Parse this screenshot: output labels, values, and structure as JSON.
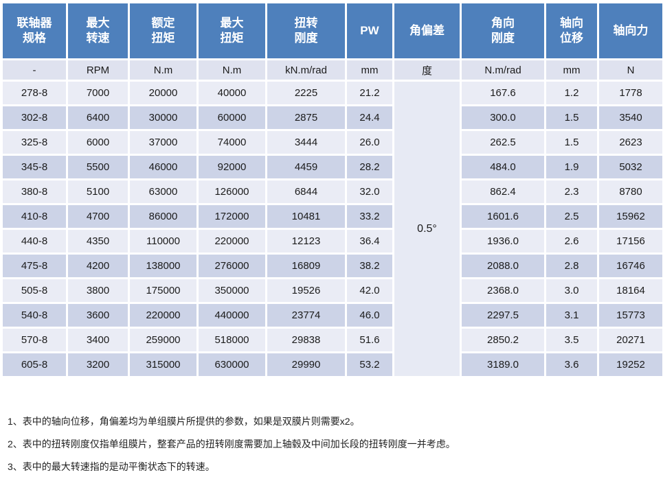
{
  "table": {
    "columns": [
      {
        "id": "spec",
        "header": "联轴器\n规格",
        "unit": "-"
      },
      {
        "id": "max-speed",
        "header": "最大\n转速",
        "unit": "RPM"
      },
      {
        "id": "rated-torque",
        "header": "额定\n扭矩",
        "unit": "N.m"
      },
      {
        "id": "max-torque",
        "header": "最大\n扭矩",
        "unit": "N.m"
      },
      {
        "id": "torsional-stiffness",
        "header": "扭转\n刚度",
        "unit": "kN.m/rad"
      },
      {
        "id": "pw",
        "header": "PW",
        "unit": "mm"
      },
      {
        "id": "angular-deviation",
        "header": "角偏差",
        "unit": "度"
      },
      {
        "id": "angular-stiffness",
        "header": "角向\n刚度",
        "unit": "N.m/rad"
      },
      {
        "id": "axial-displacement",
        "header": "轴向\n位移",
        "unit": "mm"
      },
      {
        "id": "axial-force",
        "header": "轴向力",
        "unit": "N"
      }
    ],
    "angular_deviation_value": "0.5°",
    "rows": [
      [
        "278-8",
        "7000",
        "20000",
        "40000",
        "2225",
        "21.2",
        "",
        "167.6",
        "1.2",
        "1778"
      ],
      [
        "302-8",
        "6400",
        "30000",
        "60000",
        "2875",
        "24.4",
        "",
        "300.0",
        "1.5",
        "3540"
      ],
      [
        "325-8",
        "6000",
        "37000",
        "74000",
        "3444",
        "26.0",
        "",
        "262.5",
        "1.5",
        "2623"
      ],
      [
        "345-8",
        "5500",
        "46000",
        "92000",
        "4459",
        "28.2",
        "",
        "484.0",
        "1.9",
        "5032"
      ],
      [
        "380-8",
        "5100",
        "63000",
        "126000",
        "6844",
        "32.0",
        "",
        "862.4",
        "2.3",
        "8780"
      ],
      [
        "410-8",
        "4700",
        "86000",
        "172000",
        "10481",
        "33.2",
        "",
        "1601.6",
        "2.5",
        "15962"
      ],
      [
        "440-8",
        "4350",
        "110000",
        "220000",
        "12123",
        "36.4",
        "",
        "1936.0",
        "2.6",
        "17156"
      ],
      [
        "475-8",
        "4200",
        "138000",
        "276000",
        "16809",
        "38.2",
        "",
        "2088.0",
        "2.8",
        "16746"
      ],
      [
        "505-8",
        "3800",
        "175000",
        "350000",
        "19526",
        "42.0",
        "",
        "2368.0",
        "3.0",
        "18164"
      ],
      [
        "540-8",
        "3600",
        "220000",
        "440000",
        "23774",
        "46.0",
        "",
        "2297.5",
        "3.1",
        "15773"
      ],
      [
        "570-8",
        "3400",
        "259000",
        "518000",
        "29838",
        "51.6",
        "",
        "2850.2",
        "3.5",
        "20271"
      ],
      [
        "605-8",
        "3200",
        "315000",
        "630000",
        "29990",
        "53.2",
        "",
        "3189.0",
        "3.6",
        "19252"
      ]
    ]
  },
  "notes": [
    "1、表中的轴向位移，角偏差均为单组膜片所提供的参数，如果是双膜片则需要x2。",
    "2、表中的扭转刚度仅指单组膜片，整套产品的扭转刚度需要加上轴毂及中间加长段的扭转刚度一并考虑。",
    "3、表中的最大转速指的是动平衡状态下的转速。"
  ],
  "colors": {
    "header_bg": "#4e80bc",
    "header_text": "#ffffff",
    "unit_row_bg": "#dfe2ef",
    "row_light_bg": "#eaecf5",
    "row_dark_bg": "#ccd3e7",
    "merged_cell_bg": "#e7eaf4",
    "body_text": "#1b1b1b"
  }
}
